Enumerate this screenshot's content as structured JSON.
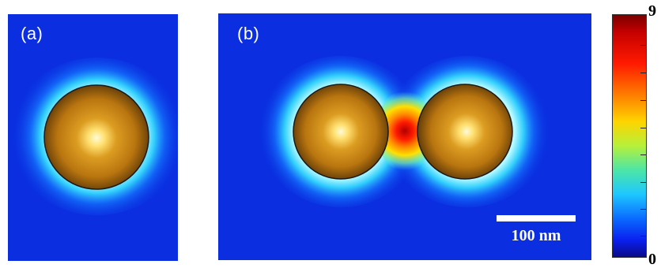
{
  "panels": {
    "a": {
      "label": "(a)"
    },
    "b": {
      "label": "(b)"
    }
  },
  "scale_bar": {
    "label": "100 nm"
  },
  "colorbar": {
    "max_label": "9",
    "min_label": "0",
    "colormap": "jet",
    "colors": {
      "low": "#0b0b88",
      "background": "#0a2ee0",
      "mid": "#4de6a6",
      "high": "#c40000"
    }
  },
  "particle_color": "#b8760f"
}
